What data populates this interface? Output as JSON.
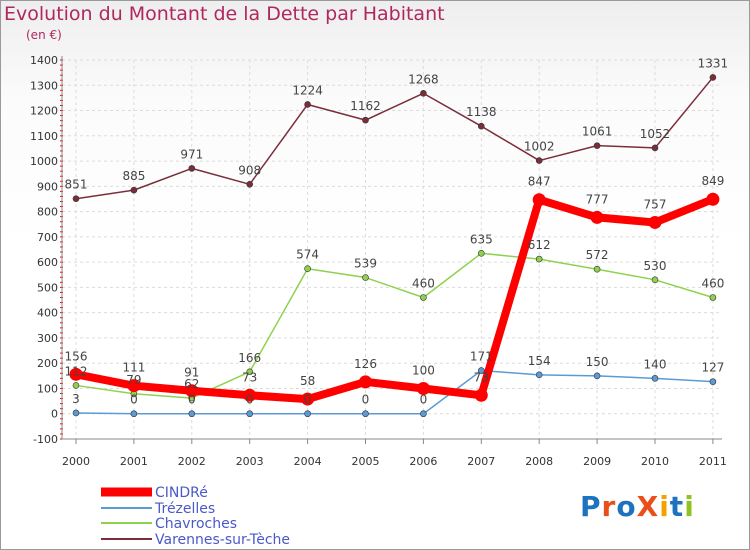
{
  "chart_data": {
    "type": "line",
    "title": "Evolution du Montant de la Dette par Habitant",
    "unit": "(en €)",
    "x": [
      "2000",
      "2001",
      "2002",
      "2003",
      "2004",
      "2005",
      "2006",
      "2007",
      "2008",
      "2009",
      "2010",
      "2011"
    ],
    "ylim": [
      -100,
      1400
    ],
    "yticks": [
      -100,
      0,
      100,
      200,
      300,
      400,
      500,
      600,
      700,
      800,
      900,
      1000,
      1100,
      1200,
      1300,
      1400
    ],
    "grid": true,
    "legend_position": "bottom-left",
    "series": [
      {
        "name": "CINDRé",
        "color": "#ff0000",
        "values": [
          156,
          111,
          91,
          73,
          58,
          126,
          100,
          73,
          847,
          777,
          757,
          849
        ],
        "labels": [
          "156",
          "111",
          "91",
          "73",
          "58",
          "126",
          "100",
          "73",
          "847",
          "777",
          "757",
          "849"
        ]
      },
      {
        "name": "Trézelles",
        "color": "#5b9bd5",
        "values": [
          3,
          0,
          0,
          0,
          0,
          0,
          0,
          171,
          154,
          150,
          140,
          127
        ],
        "labels": [
          "3",
          "0",
          "0",
          "0",
          "0",
          "0",
          "0",
          "171",
          "154",
          "150",
          "140",
          "127"
        ]
      },
      {
        "name": "Chavroches",
        "color": "#8fd14f",
        "values": [
          112,
          79,
          62,
          166,
          574,
          539,
          460,
          635,
          612,
          572,
          530,
          460
        ],
        "labels": [
          "112",
          "79",
          "62",
          "166",
          "574",
          "539",
          "460",
          "635",
          "612",
          "572",
          "530",
          "460"
        ]
      },
      {
        "name": "Varennes-sur-Tèche",
        "color": "#7b2d3a",
        "values": [
          851,
          885,
          971,
          908,
          1224,
          1162,
          1268,
          1138,
          1002,
          1061,
          1052,
          1331
        ],
        "labels": [
          "851",
          "885",
          "971",
          "908",
          "1224",
          "1162",
          "1268",
          "1138",
          "1002",
          "1061",
          "1052",
          "1331"
        ]
      }
    ]
  },
  "logo": {
    "text": "ProXiti",
    "letter_colors": [
      "#1e73be",
      "#e94e1b",
      "#1e73be",
      "#e94e1b",
      "#f5a000",
      "#1e73be",
      "#8fc31f"
    ]
  }
}
